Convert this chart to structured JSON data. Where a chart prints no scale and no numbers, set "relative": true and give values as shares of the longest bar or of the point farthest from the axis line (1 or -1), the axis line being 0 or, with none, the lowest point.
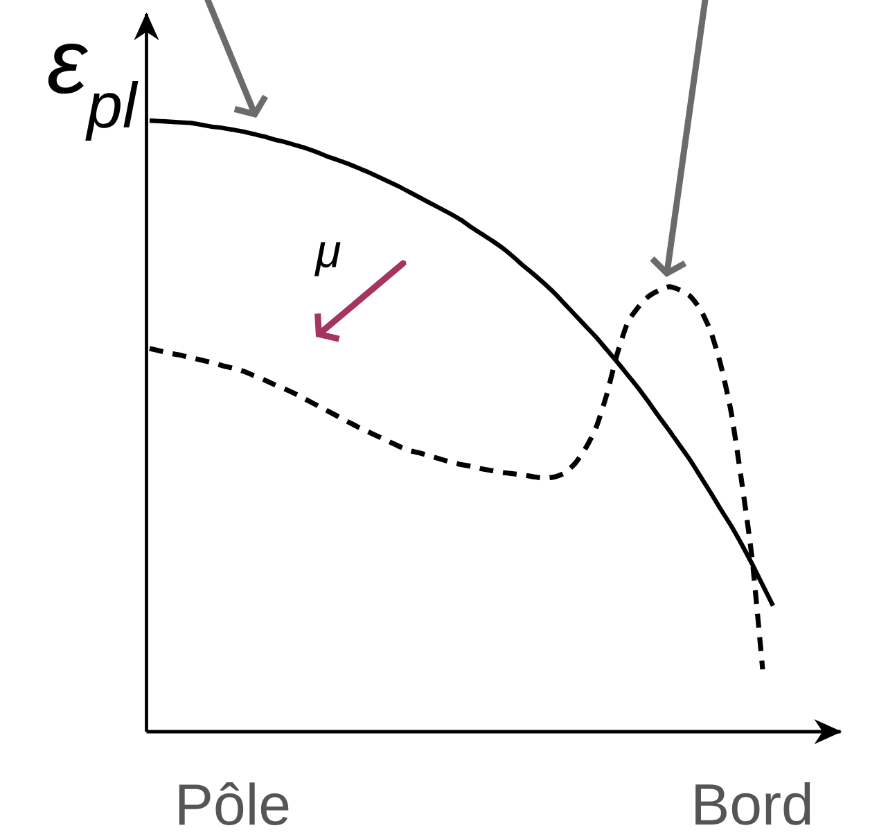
{
  "chart_data": {
    "type": "line",
    "relative": true,
    "ylabel": "ε$_{pl}$",
    "annotations": [
      "μ"
    ],
    "categories": [
      null,
      null,
      null,
      null,
      null,
      null,
      null,
      null,
      "Pôle",
      null,
      null,
      null,
      null,
      null,
      null,
      null,
      null,
      null,
      null,
      null,
      null,
      null,
      null,
      null,
      null,
      null,
      null,
      null,
      null,
      null,
      null,
      null,
      null,
      null,
      null,
      null,
      null,
      null,
      null,
      null,
      null,
      null,
      null,
      null,
      null,
      null,
      null,
      null,
      null,
      null,
      null,
      null,
      null,
      null,
      null,
      null,
      null,
      null,
      "Bord",
      null,
      null
    ],
    "series": [
      {
        "color": "#000000",
        "line_style": "solid",
        "values": [
          1.0,
          0.999,
          0.998,
          0.997,
          0.996,
          0.993,
          0.99,
          0.988,
          0.985,
          0.982,
          0.978,
          0.974,
          0.969,
          0.965,
          0.96,
          0.955,
          0.949,
          0.942,
          0.936,
          0.93,
          0.923,
          0.916,
          0.908,
          0.9,
          0.892,
          0.883,
          0.874,
          0.865,
          0.856,
          0.847,
          0.837,
          0.825,
          0.814,
          0.803,
          0.791,
          0.777,
          0.762,
          0.748,
          0.733,
          0.717,
          0.699,
          0.681,
          0.663,
          0.645,
          0.625,
          0.605,
          0.584,
          0.563,
          0.54,
          0.516,
          0.493,
          0.469,
          0.445,
          0.418,
          0.391,
          0.363,
          0.336,
          0.306,
          0.274,
          0.24,
          0.206
        ]
      },
      {
        "color": "#000000",
        "line_style": "dashed",
        "values": [
          0.627,
          0.623,
          0.619,
          0.616,
          0.612,
          0.608,
          0.604,
          0.599,
          0.595,
          0.59,
          0.583,
          0.576,
          0.568,
          0.561,
          0.553,
          0.544,
          0.535,
          0.526,
          0.517,
          0.508,
          0.499,
          0.491,
          0.483,
          0.475,
          0.467,
          0.46,
          0.456,
          0.451,
          0.446,
          0.441,
          0.437,
          0.434,
          0.43,
          0.427,
          0.424,
          0.422,
          0.42,
          0.417,
          0.415,
          0.417,
          0.424,
          0.44,
          0.465,
          0.499,
          0.552,
          0.618,
          0.669,
          0.694,
          0.712,
          0.722,
          0.728,
          0.723,
          0.713,
          0.691,
          0.655,
          0.598,
          0.52,
          0.407,
          0.281,
          0.102,
          null
        ]
      }
    ]
  }
}
